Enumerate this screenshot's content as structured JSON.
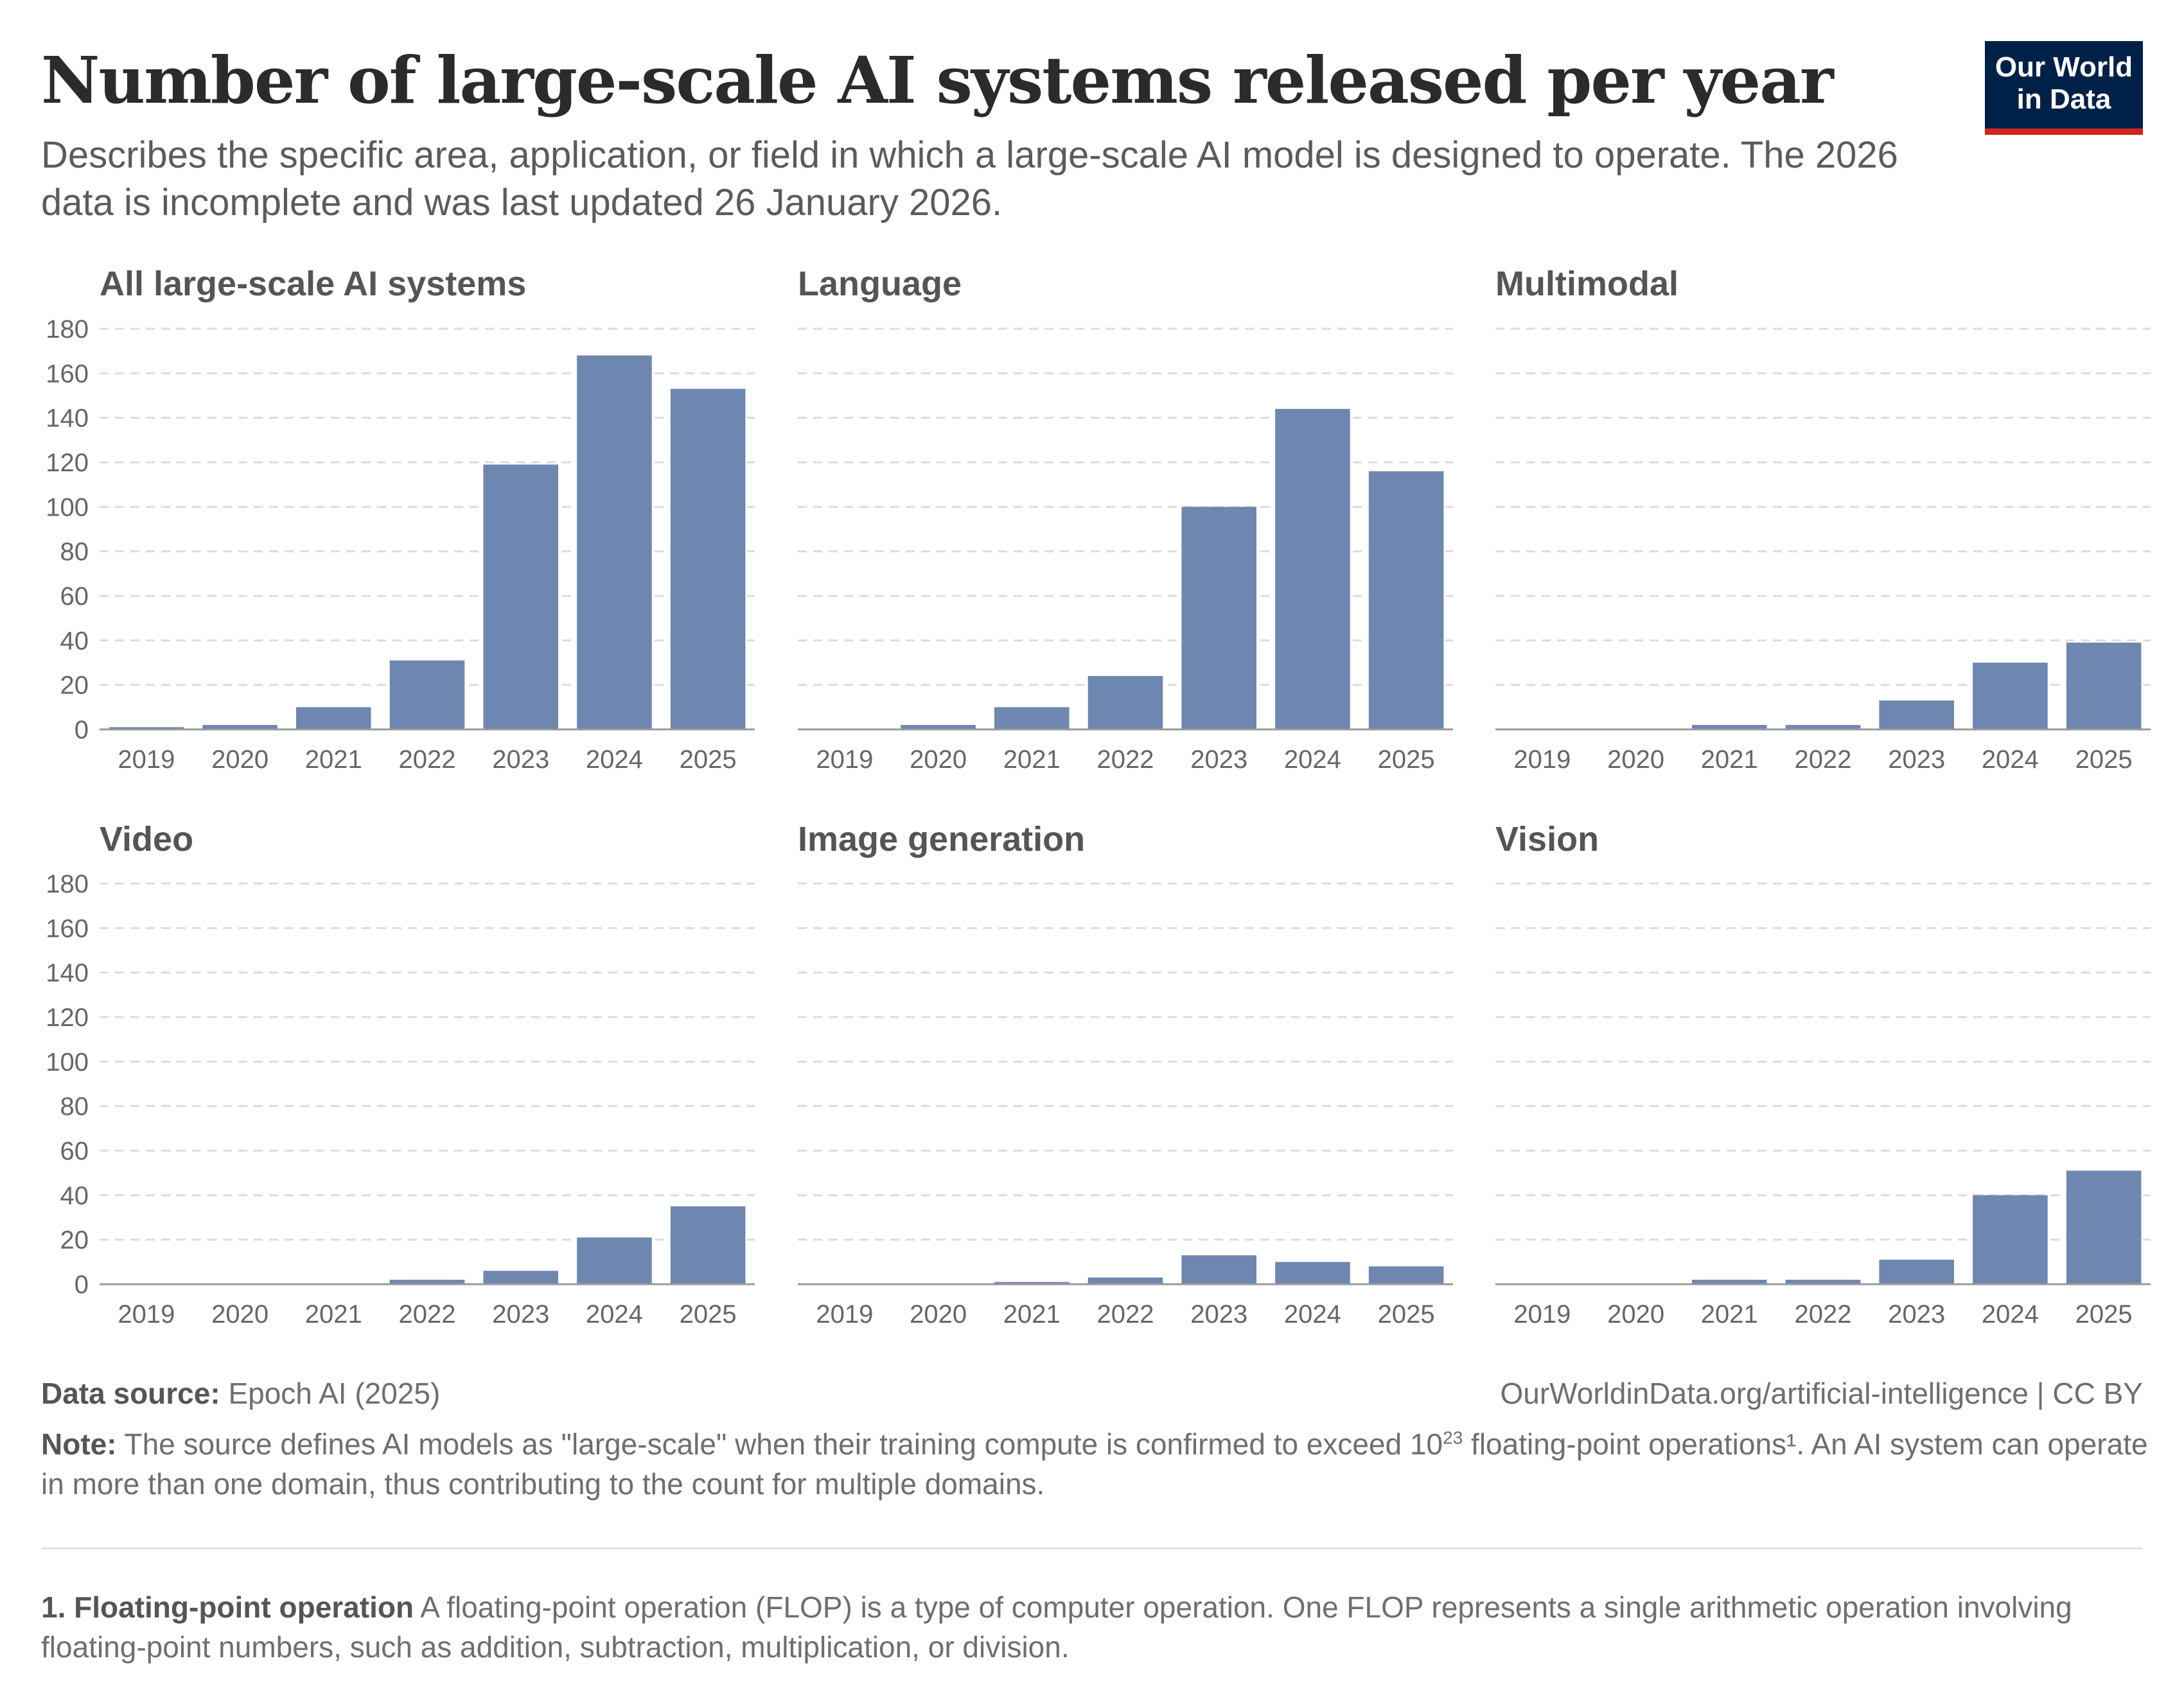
{
  "title": "Number of large-scale AI systems released per year",
  "subtitle": "Describes the specific area, application, or field in which a large-scale AI model is designed to operate. The 2026 data is incomplete and was last updated 26 January 2026.",
  "logo": {
    "line1": "Our World",
    "line2": "in Data"
  },
  "footer": {
    "source_label": "Data source:",
    "source_text": "Epoch AI (2025)",
    "url_text": "OurWorldinData.org/artificial-intelligence | CC BY",
    "note_label": "Note:",
    "note_text_1": "The source defines AI models as \"large-scale\" when their training compute is confirmed to exceed 10",
    "note_sup": "23",
    "note_text_2": " floating-point operations¹. An AI system can operate in more than one domain, thus contributing to the count for multiple domains.",
    "footnote_label": "1. Floating-point operation",
    "footnote_text": " A floating-point operation (FLOP) is a type of computer operation. One FLOP represents a single arithmetic operation involving floating-point numbers, such as addition, subtraction, multiplication, or division."
  },
  "colors": {
    "bar": "#6e87b0",
    "grid": "#dddddd",
    "axis": "#999999",
    "tick_text": "#666666",
    "panel_title": "#555555"
  },
  "chart_data": [
    {
      "type": "bar",
      "title": "All large-scale AI systems",
      "categories": [
        "2019",
        "2020",
        "2021",
        "2022",
        "2023",
        "2024",
        "2025"
      ],
      "values": [
        1,
        2,
        10,
        31,
        119,
        168,
        153
      ],
      "ylim": [
        0,
        180
      ],
      "yticks": [
        0,
        20,
        40,
        60,
        80,
        100,
        120,
        140,
        160,
        180
      ],
      "grid": true
    },
    {
      "type": "bar",
      "title": "Language",
      "categories": [
        "2019",
        "2020",
        "2021",
        "2022",
        "2023",
        "2024",
        "2025"
      ],
      "values": [
        0,
        2,
        10,
        24,
        100,
        144,
        116
      ],
      "ylim": [
        0,
        180
      ],
      "grid": true
    },
    {
      "type": "bar",
      "title": "Multimodal",
      "categories": [
        "2019",
        "2020",
        "2021",
        "2022",
        "2023",
        "2024",
        "2025"
      ],
      "values": [
        0,
        0,
        2,
        2,
        13,
        30,
        39
      ],
      "ylim": [
        0,
        180
      ],
      "grid": true
    },
    {
      "type": "bar",
      "title": "Video",
      "categories": [
        "2019",
        "2020",
        "2021",
        "2022",
        "2023",
        "2024",
        "2025"
      ],
      "values": [
        0,
        0,
        0,
        2,
        6,
        21,
        35
      ],
      "ylim": [
        0,
        180
      ],
      "yticks": [
        0,
        20,
        40,
        60,
        80,
        100,
        120,
        140,
        160,
        180
      ],
      "grid": true
    },
    {
      "type": "bar",
      "title": "Image generation",
      "categories": [
        "2019",
        "2020",
        "2021",
        "2022",
        "2023",
        "2024",
        "2025"
      ],
      "values": [
        0,
        0,
        1,
        3,
        13,
        10,
        8
      ],
      "ylim": [
        0,
        180
      ],
      "grid": true
    },
    {
      "type": "bar",
      "title": "Vision",
      "categories": [
        "2019",
        "2020",
        "2021",
        "2022",
        "2023",
        "2024",
        "2025"
      ],
      "values": [
        0,
        0,
        2,
        2,
        11,
        40,
        51
      ],
      "ylim": [
        0,
        180
      ],
      "grid": true
    }
  ]
}
